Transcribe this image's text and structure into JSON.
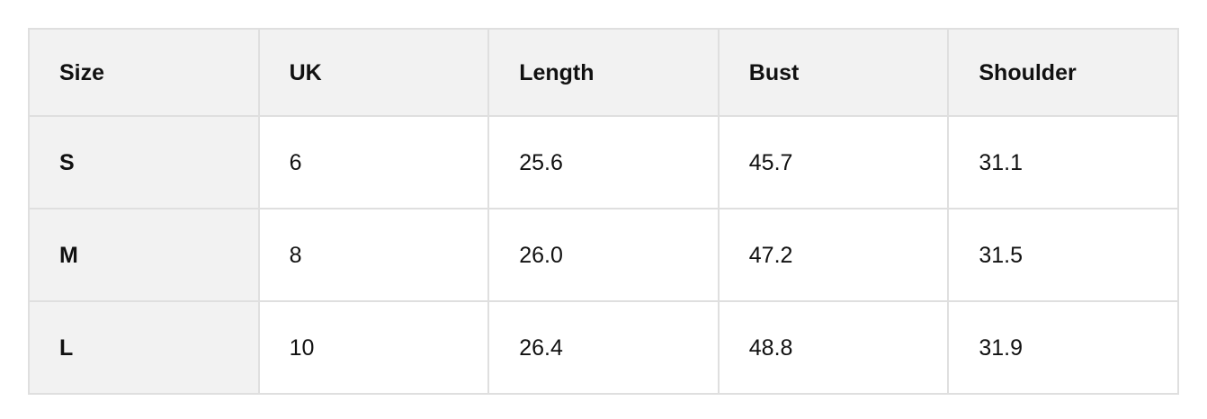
{
  "chart_data": {
    "type": "table",
    "columns": [
      "Size",
      "UK",
      "Length",
      "Bust",
      "Shoulder"
    ],
    "rows": [
      [
        "S",
        "6",
        "25.6",
        "45.7",
        "31.1"
      ],
      [
        "M",
        "8",
        "26.0",
        "47.2",
        "31.5"
      ],
      [
        "L",
        "10",
        "26.4",
        "48.8",
        "31.9"
      ]
    ]
  },
  "colors": {
    "page_background": "#ffffff",
    "header_background": "#f2f2f2",
    "row_header_background": "#f2f2f2",
    "cell_background": "#ffffff",
    "border": "#dfdfdf",
    "text": "#111111"
  }
}
